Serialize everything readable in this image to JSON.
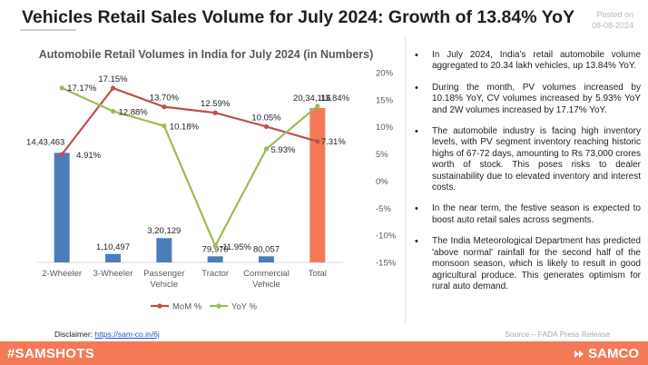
{
  "header": {
    "title": "Vehicles Retail Sales Volume for July 2024: Growth of 13.84% YoY",
    "posted_label": "Posted on",
    "posted_date": "08-08-2024"
  },
  "chart_data": {
    "type": "bar",
    "title": "Automobile Retail Volumes in India for July 2024 (in Numbers)",
    "categories": [
      "2-Wheeler",
      "3-Wheeler",
      "Passenger Vehicle",
      "Tractor",
      "Commercial Vehicle",
      "Total"
    ],
    "category_lines": [
      [
        "2-Wheeler"
      ],
      [
        "3-Wheeler"
      ],
      [
        "Passenger",
        "Vehicle"
      ],
      [
        "Tractor"
      ],
      [
        "Commercial",
        "Vehicle"
      ],
      [
        "Total"
      ]
    ],
    "values": [
      1443463,
      110497,
      320129,
      79970,
      80057,
      2034116
    ],
    "value_labels": [
      "14,43,463",
      "1,10,497",
      "3,20,129",
      "79,970",
      "80,057",
      "20,34,116"
    ],
    "bar_colors": [
      "#4a7ebb",
      "#4a7ebb",
      "#4a7ebb",
      "#4a7ebb",
      "#4a7ebb",
      "#f47a56"
    ],
    "left_axis_ylim": [
      0,
      2500000
    ],
    "right_axis": {
      "ticks": [
        20,
        15,
        10,
        5,
        0,
        -5,
        -10,
        -15
      ],
      "tick_labels": [
        "20%",
        "15%",
        "10%",
        "5%",
        "0%",
        "-5%",
        "-10%",
        "-15%"
      ],
      "ylim": [
        -15,
        20
      ]
    },
    "series": [
      {
        "name": "MoM %",
        "color": "#c0504d",
        "values": [
          4.91,
          17.15,
          13.7,
          12.59,
          10.05,
          7.31
        ],
        "labels": [
          "4.91%",
          "17.15%",
          "13.70%",
          "12.59%",
          "10.05%",
          "7.31%"
        ]
      },
      {
        "name": "YoY %",
        "color": "#9bbb59",
        "values": [
          17.17,
          12.88,
          10.18,
          -11.95,
          5.93,
          13.84
        ],
        "labels": [
          "17.17%",
          "12.88%",
          "10.18%",
          "-11.95%",
          "5.93%",
          "13.84%"
        ]
      }
    ],
    "legend_position": "bottom"
  },
  "bullets": [
    "In July 2024, India’s retail automobile volume aggregated to 20.34 lakh vehicles, up 13.84% YoY.",
    "During the month, PV volumes increased by 10.18% YoY, CV volumes increased by 5.93% YoY and 2W volumes increased by 17.17% YoY.",
    "The automobile industry is facing high inventory levels, with PV segment inventory reaching historic highs of 67-72 days, amounting to Rs 73,000 crores worth of stock. This poses risks to dealer sustainability due to elevated inventory and interest costs.",
    "In the near term, the festive season is expected to boost auto retail sales across segments.",
    "The India Meteorological Department has predicted 'above normal' rainfall for the second half of the monsoon season, which is likely to result in good agricultural produce. This generates optimism for rural auto demand."
  ],
  "footer": {
    "disclaimer_label": "Disclaimer: ",
    "disclaimer_link": "https://sam-co.in/6j",
    "source": "Source – FADA Press Release",
    "hashtag": "#SAMSHOTS",
    "brand": "SAMCO"
  }
}
